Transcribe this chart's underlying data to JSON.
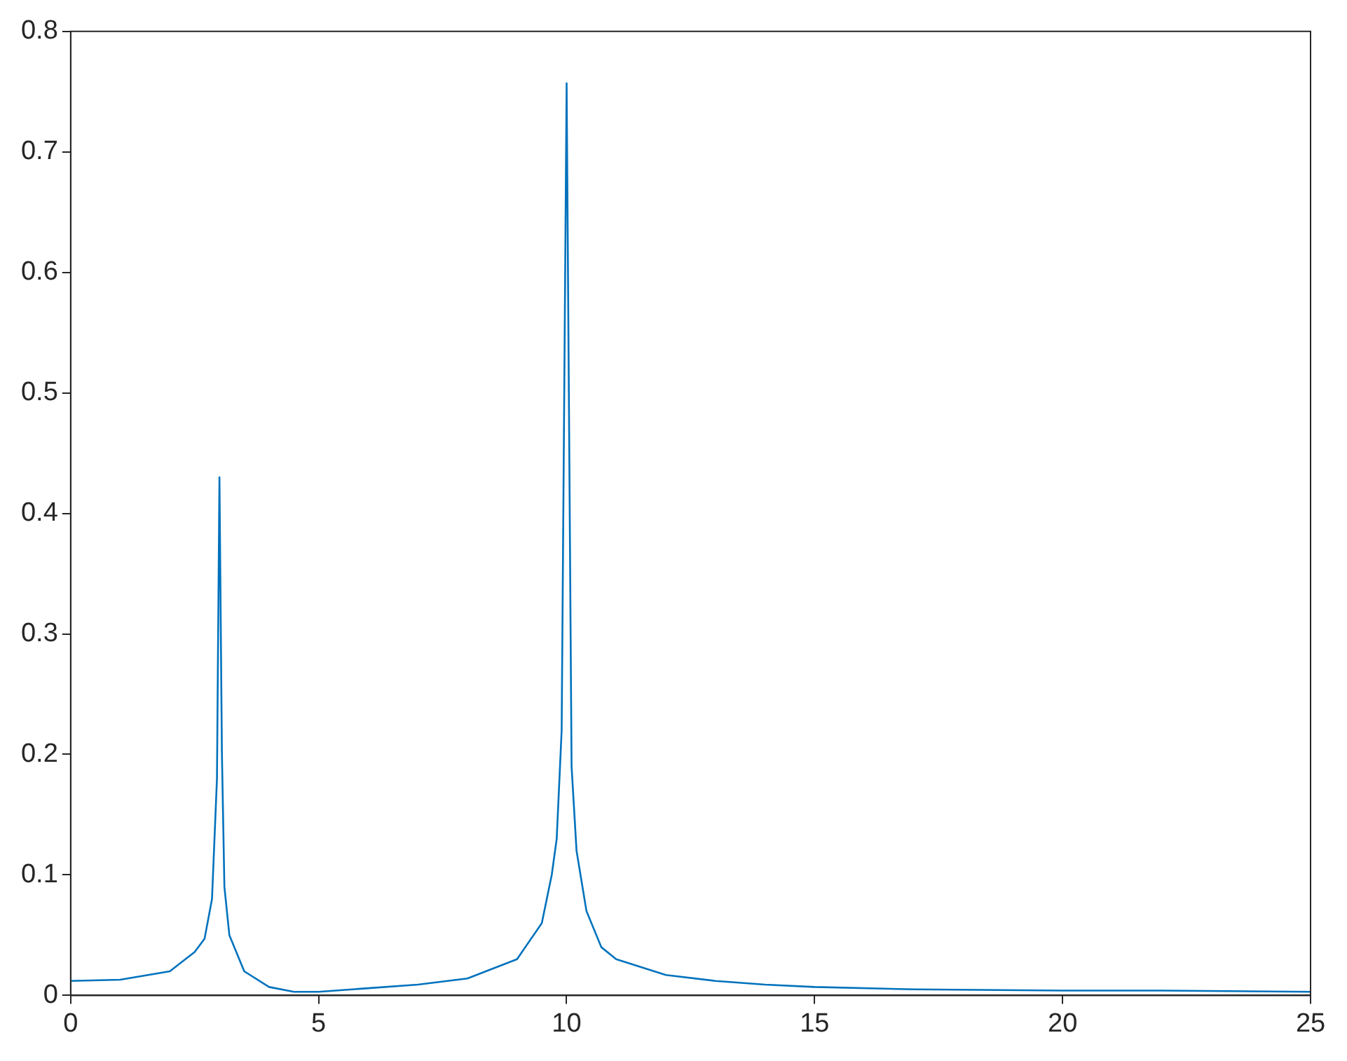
{
  "chart_data": {
    "type": "line",
    "xlim": [
      0,
      25
    ],
    "xticks": [
      0,
      5,
      10,
      15,
      20,
      25
    ],
    "ylim": [
      0,
      0.8
    ],
    "yticks": [
      0,
      0.1,
      0.2,
      0.3,
      0.4,
      0.5,
      0.6,
      0.7,
      0.8
    ],
    "grid": false,
    "legend": false,
    "marker": "none",
    "line_style": "solid",
    "series": [
      {
        "color": "#0072bd",
        "x": [
          0,
          1,
          2,
          2.5,
          2.7,
          2.85,
          2.95,
          3.0,
          3.05,
          3.1,
          3.2,
          3.5,
          4,
          4.5,
          5,
          6,
          7,
          8,
          9,
          9.5,
          9.7,
          9.8,
          9.9,
          10,
          10.1,
          10.2,
          10.4,
          10.7,
          11,
          12,
          13,
          14,
          15,
          17,
          20,
          22,
          25
        ],
        "values": [
          0.012,
          0.013,
          0.02,
          0.036,
          0.047,
          0.08,
          0.18,
          0.43,
          0.2,
          0.09,
          0.05,
          0.02,
          0.007,
          0.003,
          0.003,
          0.006,
          0.009,
          0.014,
          0.03,
          0.06,
          0.1,
          0.13,
          0.22,
          0.757,
          0.19,
          0.12,
          0.07,
          0.04,
          0.03,
          0.017,
          0.012,
          0.009,
          0.007,
          0.005,
          0.004,
          0.004,
          0.003
        ]
      }
    ]
  }
}
